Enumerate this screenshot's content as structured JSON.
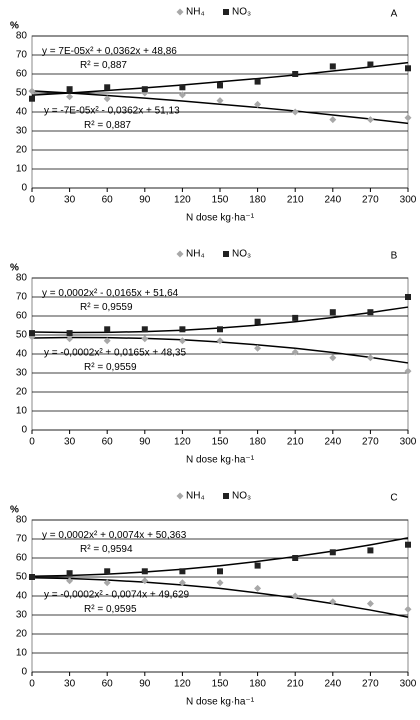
{
  "chart_data": [
    {
      "type": "scatter",
      "title": "A",
      "ylabel": "%",
      "xlabel": "N dose kg·ha⁻¹",
      "x": [
        0,
        30,
        60,
        90,
        120,
        150,
        180,
        210,
        240,
        270,
        300
      ],
      "xlim": [
        0,
        300
      ],
      "xticks": [
        0,
        30,
        60,
        90,
        120,
        150,
        180,
        210,
        240,
        270,
        300
      ],
      "ylim": [
        0,
        80
      ],
      "yticks": [
        0,
        10,
        20,
        30,
        40,
        50,
        60,
        70,
        80
      ],
      "grid": true,
      "series": [
        {
          "name": "NH₄",
          "color": "#a8a8a8",
          "marker": "diamond",
          "values": [
            51,
            48,
            47,
            50,
            49,
            46,
            44,
            40,
            36,
            36,
            37
          ],
          "trend": [
            51.1,
            50.0,
            48.7,
            47.3,
            45.8,
            44.1,
            42.4,
            40.5,
            38.4,
            36.3,
            34.0
          ]
        },
        {
          "name": "NO₃",
          "color": "#222222",
          "marker": "square",
          "values": [
            47,
            52,
            53,
            52,
            53,
            54,
            56,
            60,
            64,
            65,
            63
          ],
          "trend": [
            48.9,
            50.0,
            51.3,
            52.7,
            54.2,
            55.9,
            57.6,
            59.5,
            61.6,
            63.7,
            66.0
          ]
        }
      ],
      "annotations": [
        "y = 7E-05x² + 0,0362x + 48,86",
        "R² = 0,887",
        "y = -7E-05x² - 0,0362x + 51,13",
        "R² = 0,887"
      ]
    },
    {
      "type": "scatter",
      "title": "B",
      "ylabel": "%",
      "xlabel": "N dose kg·ha⁻¹",
      "x": [
        0,
        30,
        60,
        90,
        120,
        150,
        180,
        210,
        240,
        270,
        300
      ],
      "xlim": [
        0,
        300
      ],
      "xticks": [
        0,
        30,
        60,
        90,
        120,
        150,
        180,
        210,
        240,
        270,
        300
      ],
      "ylim": [
        0,
        80
      ],
      "yticks": [
        0,
        10,
        20,
        30,
        40,
        50,
        60,
        70,
        80
      ],
      "grid": true,
      "series": [
        {
          "name": "NH₄",
          "color": "#a8a8a8",
          "marker": "diamond",
          "values": [
            49,
            48,
            47,
            48,
            47,
            47,
            43,
            41,
            38,
            38,
            31
          ],
          "trend": [
            48.4,
            48.7,
            48.6,
            48.2,
            47.5,
            46.3,
            44.8,
            43.0,
            40.8,
            38.2,
            35.3
          ]
        },
        {
          "name": "NO₃",
          "color": "#222222",
          "marker": "square",
          "values": [
            51,
            51,
            53,
            53,
            53,
            53,
            57,
            59,
            62,
            62,
            70
          ],
          "trend": [
            51.6,
            51.3,
            51.4,
            51.8,
            52.5,
            53.7,
            55.2,
            57.0,
            59.2,
            61.8,
            64.7
          ]
        }
      ],
      "annotations": [
        "y = 0,0002x² - 0,0165x + 51,64",
        "R² = 0,9559",
        "y = -0,0002x² + 0,0165x + 48,35",
        "R² = 0,9559"
      ]
    },
    {
      "type": "scatter",
      "title": "C",
      "ylabel": "%",
      "xlabel": "N dose kg·ha⁻¹",
      "x": [
        0,
        30,
        60,
        90,
        120,
        150,
        180,
        210,
        240,
        270,
        300
      ],
      "xlim": [
        0,
        300
      ],
      "xticks": [
        0,
        30,
        60,
        90,
        120,
        150,
        180,
        210,
        240,
        270,
        300
      ],
      "ylim": [
        0,
        80
      ],
      "yticks": [
        0,
        10,
        20,
        30,
        40,
        50,
        60,
        70,
        80
      ],
      "grid": true,
      "series": [
        {
          "name": "NH₄",
          "color": "#a8a8a8",
          "marker": "diamond",
          "values": [
            50,
            48,
            47,
            48,
            47,
            47,
            44,
            40,
            37,
            36,
            33
          ],
          "trend": [
            49.6,
            49.2,
            48.4,
            47.3,
            45.8,
            44.0,
            41.6,
            39.0,
            36.0,
            32.6,
            28.9
          ]
        },
        {
          "name": "NO₃",
          "color": "#222222",
          "marker": "square",
          "values": [
            50,
            52,
            53,
            53,
            53,
            53,
            56,
            60,
            63,
            64,
            67
          ],
          "trend": [
            50.4,
            50.8,
            51.5,
            52.6,
            54.1,
            55.9,
            58.2,
            60.7,
            63.6,
            66.9,
            70.6
          ]
        }
      ],
      "annotations": [
        "y = 0,0002x² + 0,0074x + 50,363",
        "R² = 0,9594",
        "y = -0,0002x² - 0,0074x + 49,629",
        "R² = 0,9595"
      ]
    }
  ]
}
